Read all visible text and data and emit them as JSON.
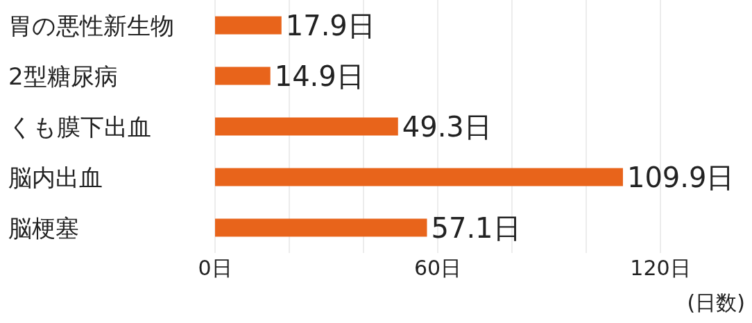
{
  "chart_data": {
    "type": "bar",
    "orientation": "horizontal",
    "categories": [
      "胃の悪性新生物",
      "2型糖尿病",
      "くも膜下出血",
      "脳内出血",
      "脳梗塞"
    ],
    "values": [
      17.9,
      14.9,
      49.3,
      109.9,
      57.1
    ],
    "value_labels": [
      "17.9日",
      "14.9日",
      "49.3日",
      "109.9日",
      "57.1日"
    ],
    "color": "#e8641b",
    "xlim": [
      0,
      120
    ],
    "xticks": [
      {
        "value": 0,
        "label": "0日"
      },
      {
        "value": 20,
        "label": null
      },
      {
        "value": 40,
        "label": null
      },
      {
        "value": 60,
        "label": "60日"
      },
      {
        "value": 80,
        "label": null
      },
      {
        "value": 100,
        "label": null
      },
      {
        "value": 120,
        "label": "120日"
      }
    ],
    "xlabel": "(日数)",
    "grid": "x"
  }
}
